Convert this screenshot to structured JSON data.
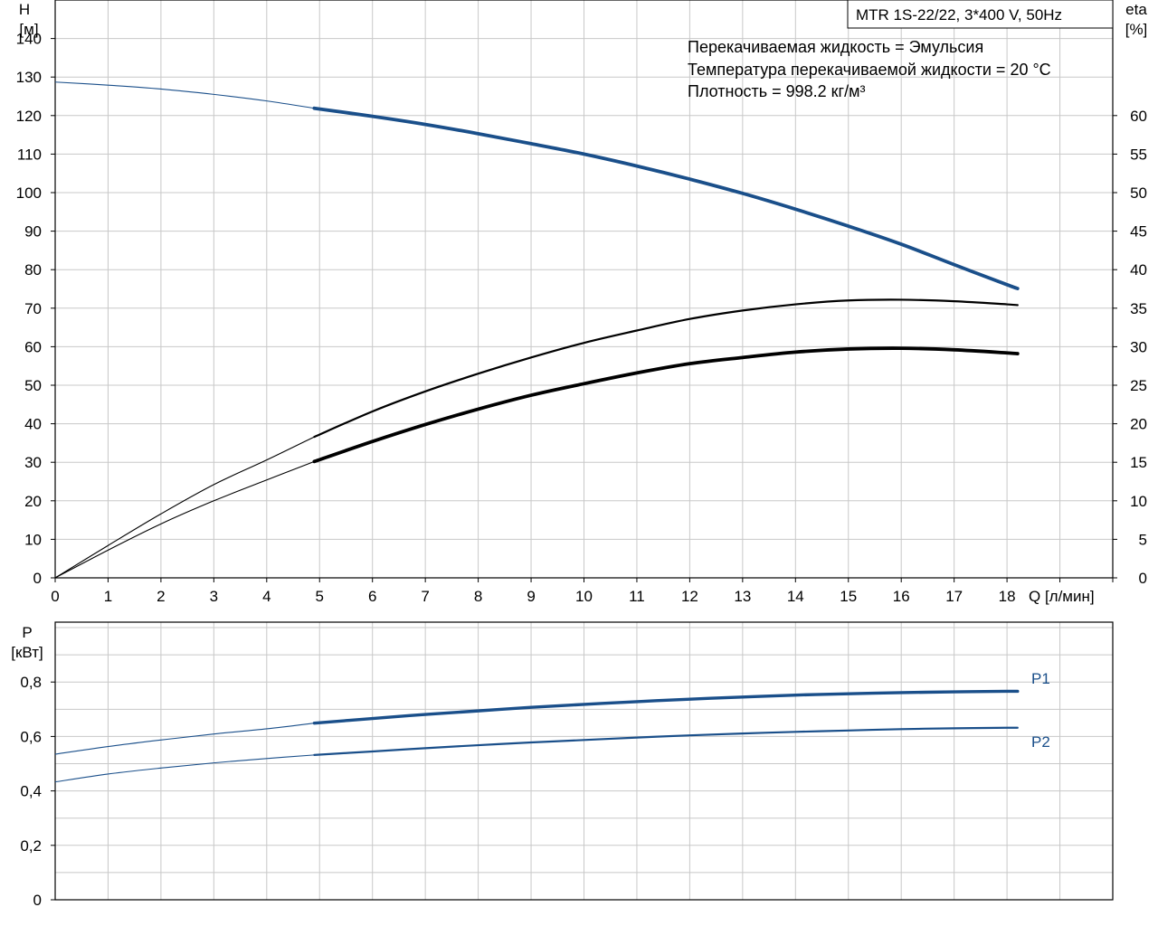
{
  "chart_data": [
    {
      "type": "line",
      "pump_label": "MTR 1S-22/22, 3*400 V, 50Hz",
      "info_lines": [
        "Перекачиваемая жидкость = Эмульсия",
        "Температура перекачиваемой жидкости = 20 °C",
        "Плотность = 998.2 кг/м³"
      ],
      "y_axis_left": {
        "name": "H",
        "unit": "[м]",
        "range": [
          0,
          150
        ],
        "ticks": [
          0,
          10,
          20,
          30,
          40,
          50,
          60,
          70,
          80,
          90,
          100,
          110,
          120,
          130,
          140
        ]
      },
      "y_axis_right": {
        "name": "eta",
        "unit": "[%]",
        "range": [
          0,
          75
        ],
        "ticks": [
          0,
          5,
          10,
          15,
          20,
          25,
          30,
          35,
          40,
          45,
          50,
          55,
          60
        ]
      },
      "x_axis": {
        "label": "Q [л/мин]",
        "range": [
          0,
          20
        ],
        "ticks": [
          0,
          1,
          2,
          3,
          4,
          5,
          6,
          7,
          8,
          9,
          10,
          11,
          12,
          13,
          14,
          15,
          16,
          17,
          18
        ]
      },
      "grid": true,
      "series": [
        {
          "axis": "left",
          "color": "#1a4f8a",
          "role": "head",
          "points": [
            [
              0,
              128.7
            ],
            [
              1,
              127.9
            ],
            [
              2,
              126.9
            ],
            [
              3,
              125.5
            ],
            [
              4,
              123.8
            ],
            [
              4.9,
              121.9
            ],
            [
              6,
              119.8
            ],
            [
              7,
              117.7
            ],
            [
              8,
              115.3
            ],
            [
              9,
              112.7
            ],
            [
              10,
              110.0
            ],
            [
              11,
              106.9
            ],
            [
              12,
              103.5
            ],
            [
              13,
              99.8
            ],
            [
              14,
              95.7
            ],
            [
              15,
              91.3
            ],
            [
              16,
              86.6
            ],
            [
              17,
              81.3
            ],
            [
              18,
              76.1
            ],
            [
              18.2,
              75.1
            ]
          ],
          "duty_start": 4.9
        },
        {
          "axis": "right",
          "color": "#000000",
          "role": "efficiency-upper",
          "points": [
            [
              0,
              0
            ],
            [
              1,
              4.2
            ],
            [
              2,
              8.3
            ],
            [
              3,
              12.1
            ],
            [
              4,
              15.3
            ],
            [
              4.9,
              18.3
            ],
            [
              6,
              21.6
            ],
            [
              7,
              24.2
            ],
            [
              8,
              26.5
            ],
            [
              9,
              28.6
            ],
            [
              10,
              30.5
            ],
            [
              11,
              32.1
            ],
            [
              12,
              33.6
            ],
            [
              13,
              34.7
            ],
            [
              14,
              35.5
            ],
            [
              15,
              36.0
            ],
            [
              16,
              36.1
            ],
            [
              17,
              35.9
            ],
            [
              18,
              35.5
            ],
            [
              18.2,
              35.4
            ]
          ],
          "duty_start": 4.9
        },
        {
          "axis": "right",
          "color": "#000000",
          "role": "efficiency-lower",
          "points": [
            [
              0,
              0
            ],
            [
              1,
              3.6
            ],
            [
              2,
              7.0
            ],
            [
              3,
              10.0
            ],
            [
              4,
              12.7
            ],
            [
              4.9,
              15.1
            ],
            [
              6,
              17.7
            ],
            [
              7,
              19.9
            ],
            [
              8,
              21.9
            ],
            [
              9,
              23.7
            ],
            [
              10,
              25.2
            ],
            [
              11,
              26.6
            ],
            [
              12,
              27.8
            ],
            [
              13,
              28.6
            ],
            [
              14,
              29.3
            ],
            [
              15,
              29.7
            ],
            [
              16,
              29.8
            ],
            [
              17,
              29.6
            ],
            [
              18,
              29.2
            ],
            [
              18.2,
              29.1
            ]
          ],
          "duty_start": 4.9
        }
      ]
    },
    {
      "type": "line",
      "y_axis": {
        "name": "P",
        "unit": "[кВт]",
        "range": [
          0,
          1.02
        ],
        "ticks": [
          0,
          0.2,
          0.4,
          0.6,
          0.8
        ],
        "tick_labels": [
          "0",
          "0,2",
          "0,4",
          "0,6",
          "0,8"
        ]
      },
      "x_axis": {
        "range": [
          0,
          20
        ],
        "ticks": [
          0,
          1,
          2,
          3,
          4,
          5,
          6,
          7,
          8,
          9,
          10,
          11,
          12,
          13,
          14,
          15,
          16,
          17,
          18
        ]
      },
      "grid": true,
      "series": [
        {
          "name": "P1",
          "color": "#1a4f8a",
          "points": [
            [
              0,
              0.535
            ],
            [
              1,
              0.563
            ],
            [
              2,
              0.587
            ],
            [
              3,
              0.609
            ],
            [
              4,
              0.628
            ],
            [
              4.9,
              0.649
            ],
            [
              6,
              0.666
            ],
            [
              7,
              0.681
            ],
            [
              8,
              0.694
            ],
            [
              9,
              0.707
            ],
            [
              10,
              0.718
            ],
            [
              11,
              0.728
            ],
            [
              12,
              0.737
            ],
            [
              13,
              0.745
            ],
            [
              14,
              0.752
            ],
            [
              15,
              0.757
            ],
            [
              16,
              0.761
            ],
            [
              17,
              0.764
            ],
            [
              18,
              0.766
            ],
            [
              18.2,
              0.766
            ]
          ],
          "duty_start": 4.9
        },
        {
          "name": "P2",
          "color": "#1a4f8a",
          "points": [
            [
              0,
              0.433
            ],
            [
              1,
              0.462
            ],
            [
              2,
              0.484
            ],
            [
              3,
              0.503
            ],
            [
              4,
              0.519
            ],
            [
              4.9,
              0.532
            ],
            [
              6,
              0.545
            ],
            [
              7,
              0.557
            ],
            [
              8,
              0.568
            ],
            [
              9,
              0.578
            ],
            [
              10,
              0.587
            ],
            [
              11,
              0.596
            ],
            [
              12,
              0.604
            ],
            [
              13,
              0.611
            ],
            [
              14,
              0.617
            ],
            [
              15,
              0.622
            ],
            [
              16,
              0.627
            ],
            [
              17,
              0.63
            ],
            [
              18,
              0.632
            ],
            [
              18.2,
              0.632
            ]
          ],
          "duty_start": 4.9
        }
      ]
    }
  ]
}
